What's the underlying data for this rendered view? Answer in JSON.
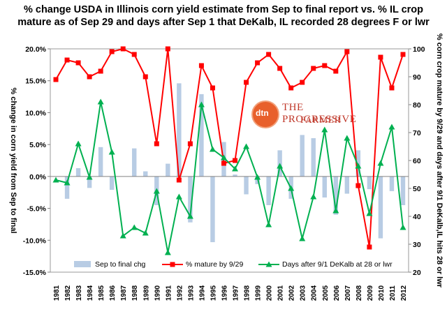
{
  "chart_data": {
    "type": "bar+line",
    "title": "% change USDA in Illinois corn yield estimate from Sep to final report vs. % IL crop mature as of Sep 29 and days after Sep 1 that DeKalb, IL recorded 28 degrees F or lwr",
    "ylabel_left": "% change in corn yield from Sep to final",
    "ylabel_right": "% corn crop mature by 9/29 and days after 9/1 DeKalb,IL hits 28 or lwr",
    "ylim_left": [
      -15,
      20
    ],
    "ylim_right": [
      20,
      100
    ],
    "yticks_left": [
      "-15.0%",
      "-10.0%",
      "-5.0%",
      "0.0%",
      "5.0%",
      "10.0%",
      "15.0%",
      "20.0%"
    ],
    "yticks_right": [
      "20",
      "30",
      "40",
      "50",
      "60",
      "70",
      "80",
      "90",
      "100"
    ],
    "categories": [
      "1981",
      "1982",
      "1983",
      "1984",
      "1985",
      "1986",
      "1987",
      "1988",
      "1989",
      "1990",
      "1991",
      "1992",
      "1993",
      "1994",
      "1995",
      "1996",
      "1997",
      "1998",
      "1999",
      "2000",
      "2001",
      "2002",
      "2003",
      "2004",
      "2005",
      "2006",
      "2007",
      "2008",
      "2009",
      "2010",
      "2011",
      "2012"
    ],
    "series": [
      {
        "name": "Sep to final chg",
        "type": "bar",
        "axis": "left",
        "color": "#b8cce4",
        "values": [
          0.0,
          -3.5,
          1.3,
          -1.8,
          4.6,
          -2.1,
          0.0,
          4.4,
          0.8,
          -4.5,
          2.0,
          14.6,
          -7.2,
          12.9,
          -10.3,
          5.4,
          0.3,
          -2.8,
          -1.2,
          -4.5,
          4.1,
          -3.5,
          6.5,
          6.0,
          -3.3,
          -6.0,
          -2.7,
          4.1,
          -2.0,
          -9.7,
          -2.3,
          -4.5
        ]
      },
      {
        "name": "% mature by 9/29",
        "type": "line",
        "axis": "right",
        "color": "#ff0000",
        "values": [
          89,
          96,
          95,
          90,
          92,
          99,
          100,
          98,
          90,
          66,
          100,
          53,
          66,
          94,
          86,
          59,
          60,
          88,
          95,
          98,
          93,
          86,
          88,
          93,
          94,
          92,
          99,
          51,
          29,
          97,
          86,
          98
        ]
      },
      {
        "name": "Days after 9/1 DeKalb at 28 or lwr",
        "type": "line",
        "axis": "right",
        "color": "#00b050",
        "values": [
          53,
          52,
          66,
          54,
          81,
          63,
          33,
          36,
          34,
          49,
          27,
          47,
          40,
          80,
          64,
          61,
          57,
          65,
          54,
          37,
          58,
          50,
          32,
          47,
          71,
          42,
          68,
          58,
          41,
          59,
          72,
          36
        ]
      }
    ],
    "legend_position": "bottom-inside",
    "grid": false
  },
  "logo": {
    "circle_text": "dtn",
    "brand_top": "THE PROGRESSIVE",
    "brand_bottom": "FARMER",
    "accent_color": "#e8602c"
  }
}
